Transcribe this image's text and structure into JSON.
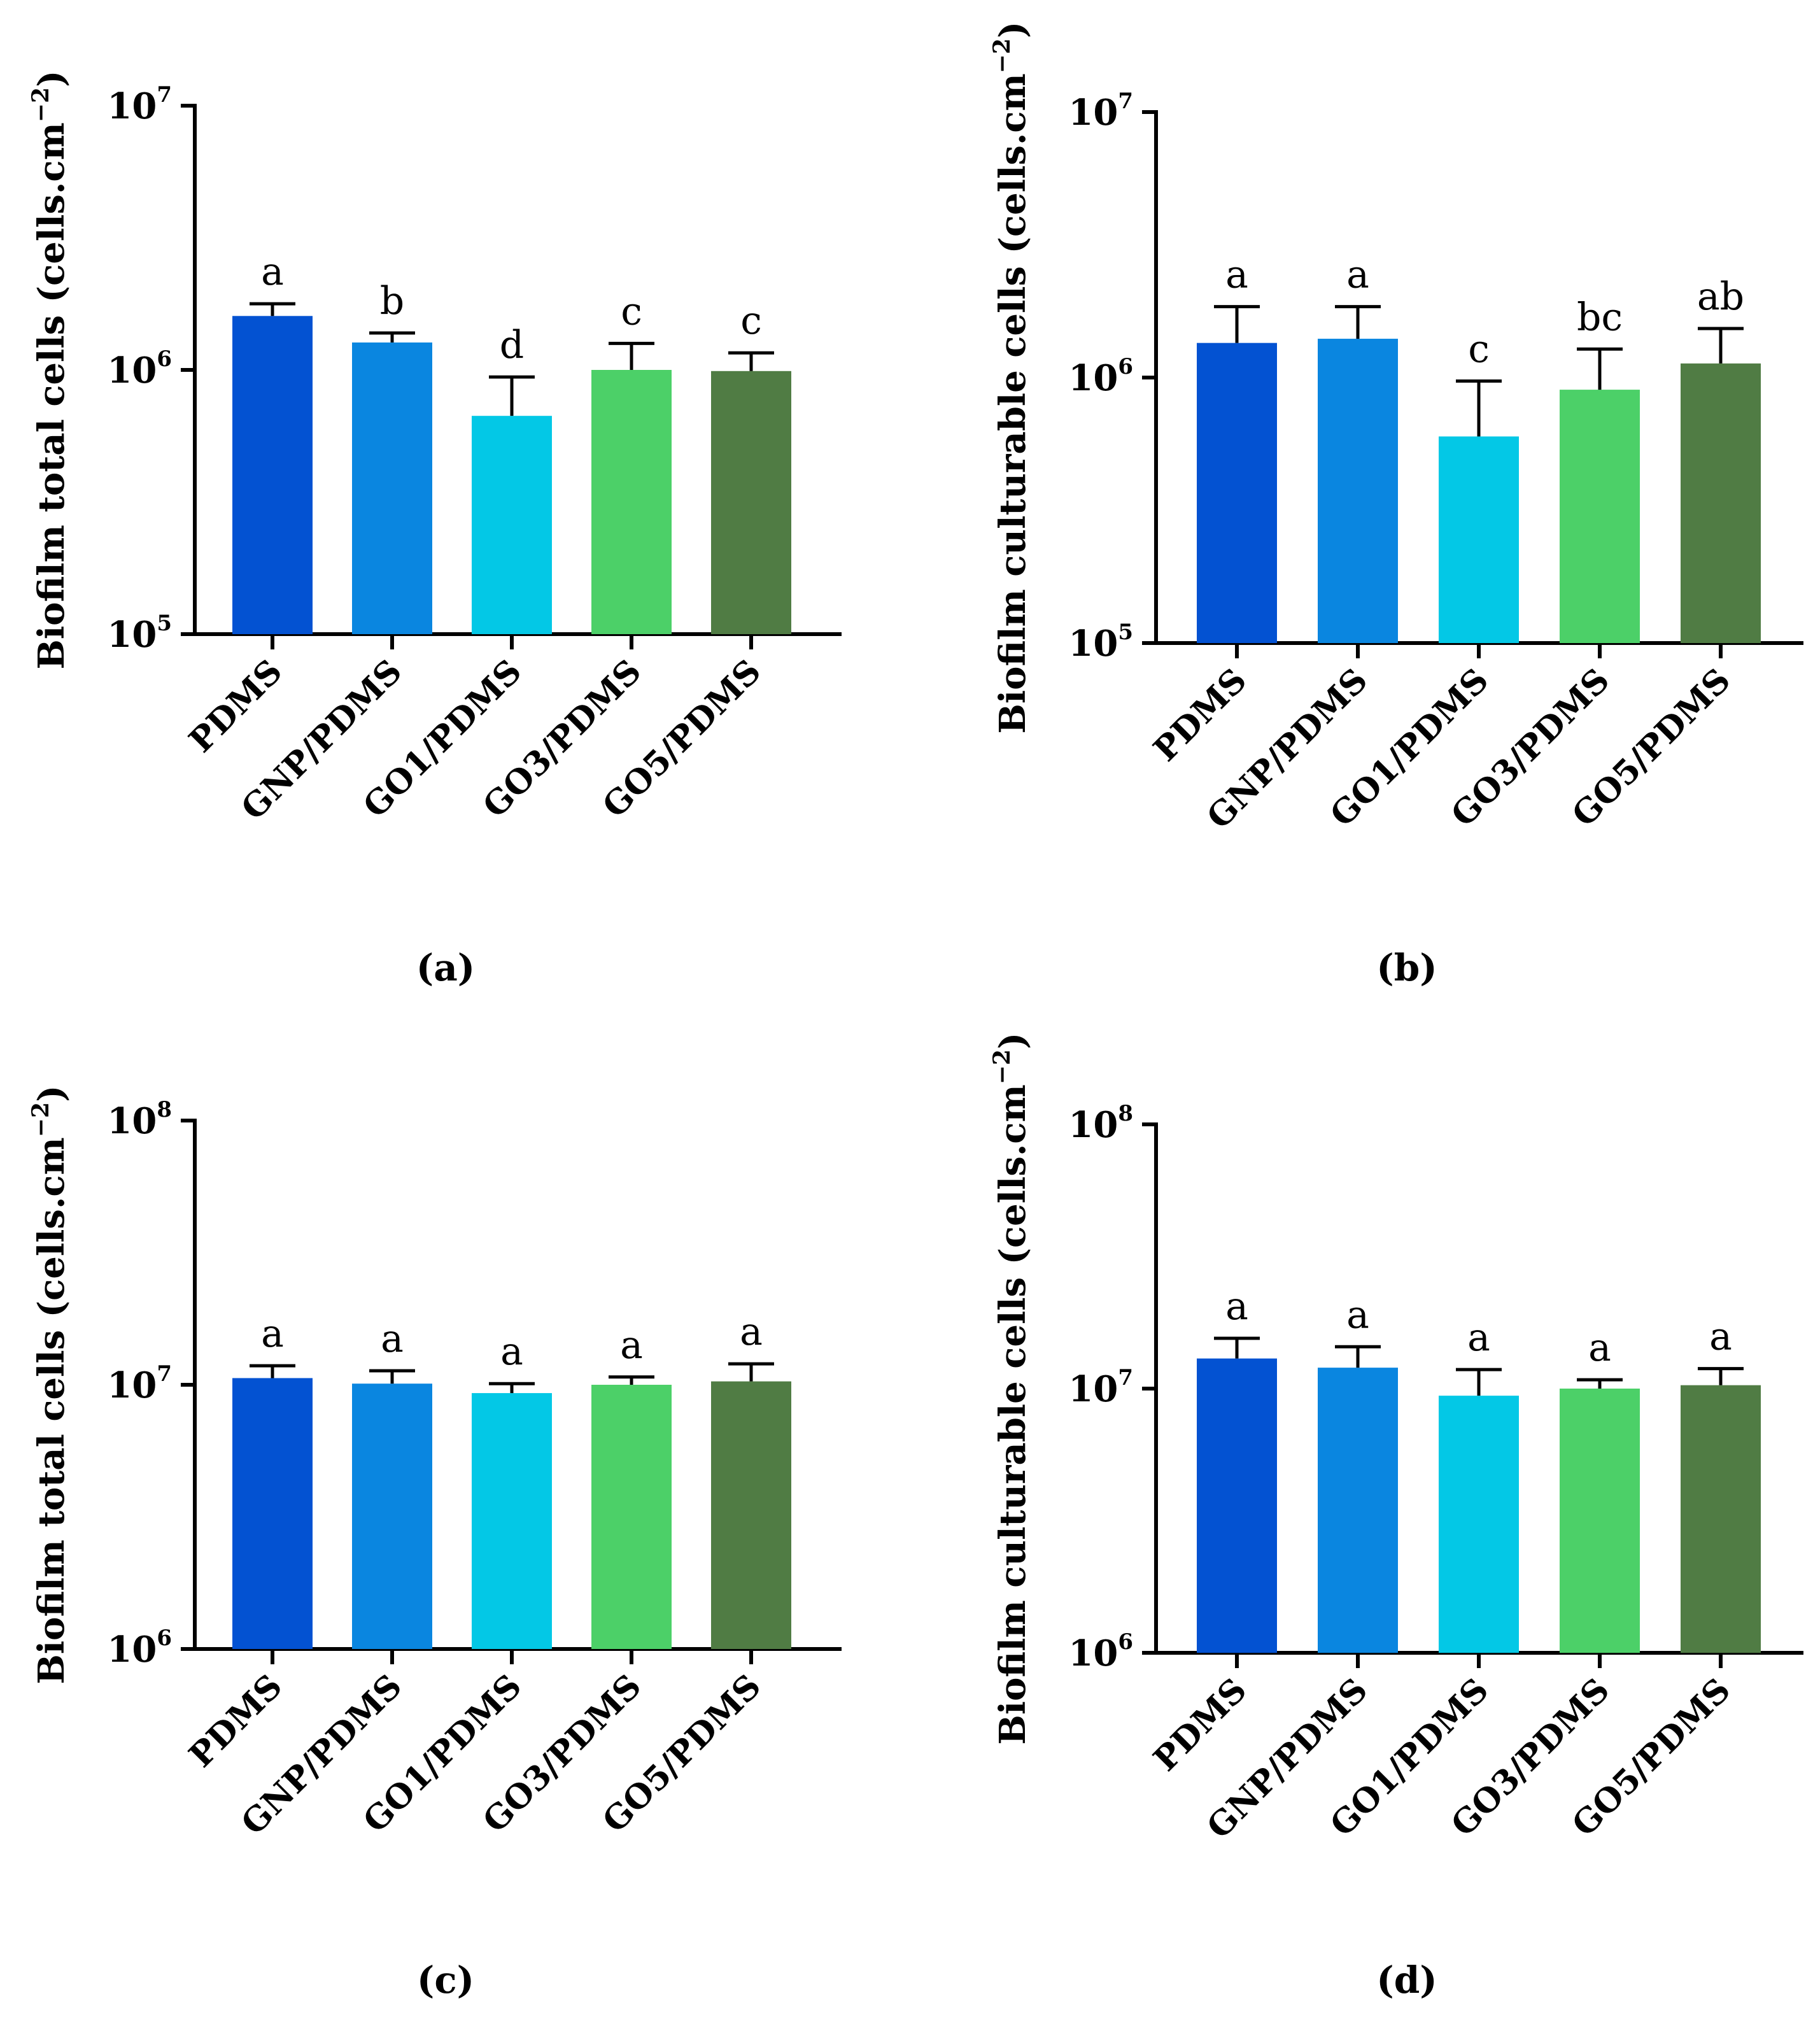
{
  "figure": {
    "panels": [
      "a",
      "b",
      "c",
      "d"
    ]
  },
  "chart_data": [
    {
      "type": "bar",
      "panel_label": "(a)",
      "ylabel_main": "Biofilm total cells (cells.cm",
      "ylabel_sup": "−2",
      "ylabel_end": ")",
      "yscale": "log",
      "ylim": [
        100000,
        10000000
      ],
      "yticks": [
        {
          "base": "10",
          "exp": "5",
          "value": 100000
        },
        {
          "base": "10",
          "exp": "6",
          "value": 1000000
        },
        {
          "base": "10",
          "exp": "7",
          "value": 10000000
        }
      ],
      "categories": [
        "PDMS",
        "GNP/PDMS",
        "GO1/PDMS",
        "GO3/PDMS",
        "GO5/PDMS"
      ],
      "values": [
        1600000,
        1270000,
        670000,
        1000000,
        990000
      ],
      "errors_upper": [
        1780000,
        1380000,
        940000,
        1260000,
        1160000
      ],
      "letters": [
        "a",
        "b",
        "d",
        "c",
        "c"
      ],
      "colors": [
        "#0352d2",
        "#0a86e0",
        "#03c8e6",
        "#4cd068",
        "#507c44"
      ]
    },
    {
      "type": "bar",
      "panel_label": "(b)",
      "ylabel_main": "Biofilm culturable cells (cells.cm",
      "ylabel_sup": "−2",
      "ylabel_end": ")",
      "yscale": "log",
      "ylim": [
        100000,
        10000000
      ],
      "yticks": [
        {
          "base": "10",
          "exp": "5",
          "value": 100000
        },
        {
          "base": "10",
          "exp": "6",
          "value": 1000000
        },
        {
          "base": "10",
          "exp": "7",
          "value": 10000000
        }
      ],
      "categories": [
        "PDMS",
        "GNP/PDMS",
        "GO1/PDMS",
        "GO3/PDMS",
        "GO5/PDMS"
      ],
      "values": [
        1350000,
        1400000,
        600000,
        900000,
        1130000
      ],
      "errors_upper": [
        1850000,
        1850000,
        970000,
        1280000,
        1530000
      ],
      "letters": [
        "a",
        "a",
        "c",
        "bc",
        "ab"
      ],
      "colors": [
        "#0352d2",
        "#0a86e0",
        "#03c8e6",
        "#4cd068",
        "#507c44"
      ]
    },
    {
      "type": "bar",
      "panel_label": "(c)",
      "ylabel_main": "Biofilm total cells (cells.cm",
      "ylabel_sup": "−2",
      "ylabel_end": ")",
      "yscale": "log",
      "ylim": [
        1000000,
        100000000
      ],
      "yticks": [
        {
          "base": "10",
          "exp": "6",
          "value": 1000000
        },
        {
          "base": "10",
          "exp": "7",
          "value": 10000000
        },
        {
          "base": "10",
          "exp": "8",
          "value": 100000000
        }
      ],
      "categories": [
        "PDMS",
        "GNP/PDMS",
        "GO1/PDMS",
        "GO3/PDMS",
        "GO5/PDMS"
      ],
      "values": [
        10600000,
        10100000,
        9300000,
        10000000,
        10300000
      ],
      "errors_upper": [
        11800000,
        11300000,
        10100000,
        10700000,
        12000000
      ],
      "letters": [
        "a",
        "a",
        "a",
        "a",
        "a"
      ],
      "colors": [
        "#0352d2",
        "#0a86e0",
        "#03c8e6",
        "#4cd068",
        "#507c44"
      ]
    },
    {
      "type": "bar",
      "panel_label": "(d)",
      "ylabel_main": "Biofilm culturable cells (cells.cm",
      "ylabel_sup": "−2",
      "ylabel_end": ")",
      "yscale": "log",
      "ylim": [
        1000000,
        100000000
      ],
      "yticks": [
        {
          "base": "10",
          "exp": "6",
          "value": 1000000
        },
        {
          "base": "10",
          "exp": "7",
          "value": 10000000
        },
        {
          "base": "10",
          "exp": "8",
          "value": 100000000
        }
      ],
      "categories": [
        "PDMS",
        "GNP/PDMS",
        "GO1/PDMS",
        "GO3/PDMS",
        "GO5/PDMS"
      ],
      "values": [
        13000000,
        12000000,
        9400000,
        10000000,
        10300000
      ],
      "errors_upper": [
        15500000,
        14400000,
        11800000,
        10800000,
        11900000
      ],
      "letters": [
        "a",
        "a",
        "a",
        "a",
        "a"
      ],
      "colors": [
        "#0352d2",
        "#0a86e0",
        "#03c8e6",
        "#4cd068",
        "#507c44"
      ]
    }
  ]
}
